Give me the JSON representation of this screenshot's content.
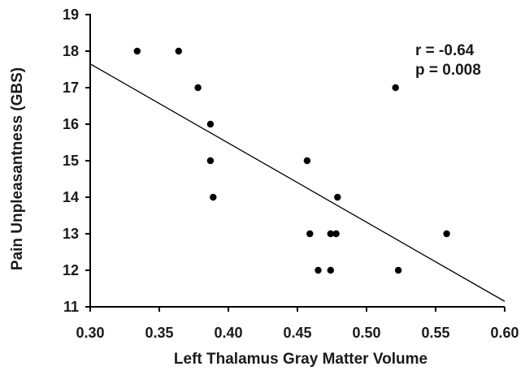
{
  "chart_data": {
    "type": "scatter",
    "title": "",
    "xlabel": "Left Thalamus Gray Matter Volume",
    "ylabel": "Pain Unpleasantness (GBS)",
    "xlim": [
      0.3,
      0.6
    ],
    "ylim": [
      11,
      19
    ],
    "x_ticks": [
      "0.30",
      "0.35",
      "0.40",
      "0.45",
      "0.50",
      "0.55",
      "0.60"
    ],
    "y_ticks": [
      "11",
      "12",
      "13",
      "14",
      "15",
      "16",
      "17",
      "18",
      "19"
    ],
    "grid": false,
    "legend": "none",
    "series": [
      {
        "points": [
          {
            "x": 0.334,
            "y": 18
          },
          {
            "x": 0.364,
            "y": 18
          },
          {
            "x": 0.378,
            "y": 17
          },
          {
            "x": 0.387,
            "y": 16
          },
          {
            "x": 0.387,
            "y": 15
          },
          {
            "x": 0.389,
            "y": 14
          },
          {
            "x": 0.457,
            "y": 15
          },
          {
            "x": 0.479,
            "y": 14
          },
          {
            "x": 0.459,
            "y": 13
          },
          {
            "x": 0.474,
            "y": 13
          },
          {
            "x": 0.478,
            "y": 13
          },
          {
            "x": 0.465,
            "y": 12
          },
          {
            "x": 0.474,
            "y": 12
          },
          {
            "x": 0.521,
            "y": 17
          },
          {
            "x": 0.558,
            "y": 13
          },
          {
            "x": 0.523,
            "y": 12
          }
        ]
      }
    ],
    "trendline": {
      "x": [
        0.3,
        0.6
      ],
      "y": [
        17.65,
        11.15
      ]
    },
    "annotations": [
      "r = -0.64",
      "p = 0.008"
    ],
    "colors": {
      "points": "#000000",
      "line": "#000000",
      "axes": "#000000"
    }
  }
}
